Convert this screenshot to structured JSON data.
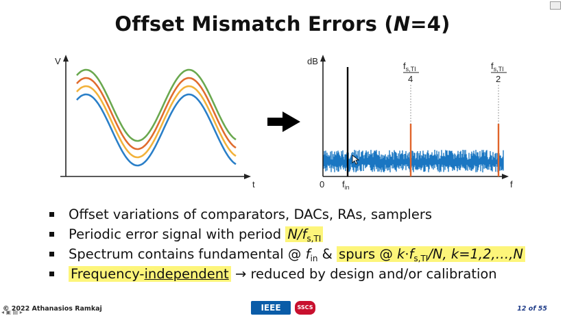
{
  "slide": {
    "title_prefix": "Offset Mismatch Errors (",
    "title_var": "N",
    "title_suffix": "=4)",
    "footer_author": "© 2022 Athanasios Ramkaj",
    "page_indicator": "12 of 55",
    "logo_ieee": "IEEE",
    "logo_sscs": "SSCS"
  },
  "time_plot": {
    "y_label": "V",
    "x_label": "t",
    "series_colors": [
      "#6aa84f",
      "#e06c2e",
      "#f2b23a",
      "#2a7fc8"
    ],
    "offsets": [
      3,
      2,
      1,
      0
    ]
  },
  "spectrum_plot": {
    "y_label": "dB",
    "x_label": "f",
    "origin_label": "0",
    "fin_label": "f",
    "fin_sub": "in",
    "frac1_num": "f",
    "frac1_num_sub": "s,TI",
    "frac1_den": "4",
    "frac2_num": "f",
    "frac2_num_sub": "s,TI",
    "frac2_den": "2",
    "noise_color": "#1a76c2",
    "spur_color": "#e0642a"
  },
  "bullets": {
    "b1": "Offset variations of comparators, DACs, RAs, samplers",
    "b2_pre": "Periodic error signal with period ",
    "b2_hl_N": "N/",
    "b2_hl_f": "f",
    "b2_hl_sub": "s,TI",
    "b3_pre": "Spectrum contains fundamental @ ",
    "b3_f": "f",
    "b3_f_sub": "in",
    "b3_amp": " & ",
    "b3_hl_a": "spurs @ ",
    "b3_hl_k": "k",
    "b3_hl_dot": "·",
    "b3_hl_f": "f",
    "b3_hl_sub": "s,TI",
    "b3_hl_rest": "/N, k=1,2,…,N",
    "b4_hl_a": "Frequency-",
    "b4_hl_u": "independent",
    "b4_rest": " → reduced by design and/or calibration"
  }
}
